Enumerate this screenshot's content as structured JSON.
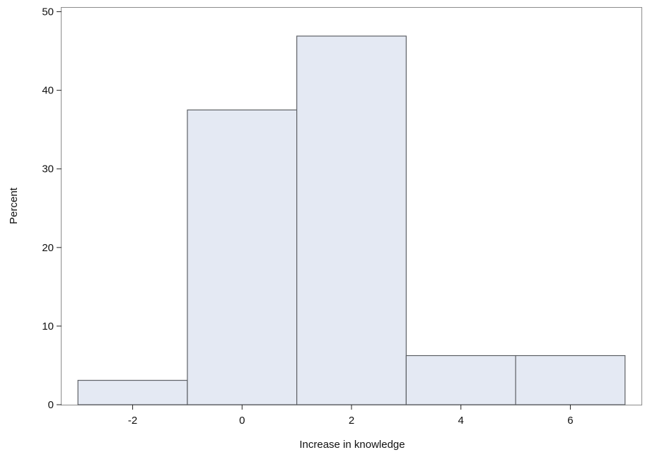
{
  "chart_data": {
    "type": "bar",
    "subtype": "histogram",
    "title": "",
    "xlabel": "Increase in knowledge",
    "ylabel": "Percent",
    "xlim": [
      -3.3,
      7.3
    ],
    "ylim": [
      0,
      50.5
    ],
    "xticks": [
      -2,
      0,
      2,
      4,
      6
    ],
    "xtick_labels": [
      "-2",
      "0",
      "2",
      "4",
      "6"
    ],
    "yticks": [
      0,
      10,
      20,
      30,
      40,
      50
    ],
    "ytick_labels": [
      "0",
      "10",
      "20",
      "30",
      "40",
      "50"
    ],
    "bin_width": 2,
    "bins": [
      {
        "center": -2,
        "value": 3.1
      },
      {
        "center": 0,
        "value": 37.5
      },
      {
        "center": 2,
        "value": 46.9
      },
      {
        "center": 4,
        "value": 6.25
      },
      {
        "center": 6,
        "value": 6.25
      }
    ],
    "grid": false,
    "legend": "none",
    "colors": {
      "bar_fill": "#e4e9f3",
      "bar_stroke": "#5e6166",
      "frame": "#8c8c8c"
    }
  }
}
